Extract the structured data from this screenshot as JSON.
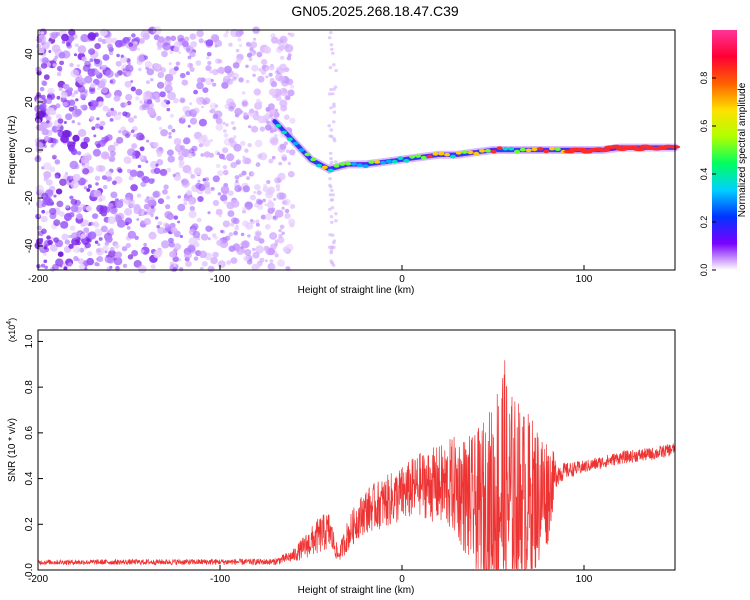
{
  "title": "GN05.2025.268.18.47.C39",
  "chart_data": [
    {
      "type": "heatmap",
      "xlabel": "Height of straight line (km)",
      "ylabel": "Frequency (Hz)",
      "xlim": [
        -200,
        150
      ],
      "ylim": [
        -50,
        50
      ],
      "xticks": [
        -200,
        -100,
        0,
        100
      ],
      "yticks": [
        -40,
        -20,
        0,
        20,
        40
      ],
      "ridge": {
        "x": [
          -70,
          -65,
          -60,
          -55,
          -50,
          -45,
          -40,
          -35,
          -30,
          -20,
          -10,
          0,
          10,
          20,
          30,
          40,
          50,
          60,
          70,
          80,
          90,
          100,
          110,
          120,
          130,
          140,
          150
        ],
        "y": [
          12,
          8,
          4,
          0,
          -4,
          -6,
          -8,
          -7,
          -6,
          -6,
          -5,
          -4,
          -3,
          -2,
          -2,
          -1,
          0,
          0,
          0,
          0,
          0,
          0,
          0,
          1,
          1,
          1,
          1
        ]
      },
      "colorbar": {
        "label": "Normalized spectral amplitude",
        "range": [
          0,
          1
        ],
        "ticks": [
          "0.0",
          "0.2",
          "0.4",
          "0.6",
          "0.8"
        ],
        "colormap": [
          "#ffffff",
          "#7a00ff",
          "#0033ff",
          "#00d0ff",
          "#00ff60",
          "#b0ff00",
          "#ffe000",
          "#ff6000",
          "#ff0033",
          "#ff3399"
        ]
      }
    },
    {
      "type": "line",
      "xlabel": "Height of straight line (km)",
      "ylabel": "SNR (10 * v/v)",
      "scale_label": "(x10",
      "scale_exp": "4",
      "scale_close": ")",
      "xlim": [
        -200,
        150
      ],
      "ylim": [
        0,
        1.05
      ],
      "xticks": [
        -200,
        -100,
        0,
        100
      ],
      "yticks": [
        0.0,
        0.2,
        0.4,
        0.6,
        0.8,
        1.0
      ],
      "color": "#ee3333",
      "envelope": {
        "x": [
          -200,
          -70,
          -60,
          -45,
          -40,
          -35,
          -30,
          -25,
          -20,
          -10,
          0,
          10,
          20,
          30,
          40,
          50,
          55,
          60,
          70,
          80,
          85,
          90,
          100,
          110,
          120,
          130,
          140,
          150
        ],
        "base": [
          0.03,
          0.03,
          0.05,
          0.12,
          0.14,
          0.05,
          0.12,
          0.18,
          0.22,
          0.25,
          0.28,
          0.32,
          0.3,
          0.28,
          0.15,
          0.1,
          0.1,
          0.1,
          0.15,
          0.25,
          0.4,
          0.42,
          0.44,
          0.46,
          0.48,
          0.49,
          0.5,
          0.52
        ],
        "amp": [
          0.015,
          0.02,
          0.04,
          0.12,
          0.12,
          0.04,
          0.1,
          0.12,
          0.14,
          0.16,
          0.18,
          0.2,
          0.25,
          0.32,
          0.45,
          0.65,
          0.9,
          0.7,
          0.55,
          0.35,
          0.08,
          0.05,
          0.04,
          0.04,
          0.04,
          0.04,
          0.04,
          0.04
        ]
      }
    }
  ]
}
